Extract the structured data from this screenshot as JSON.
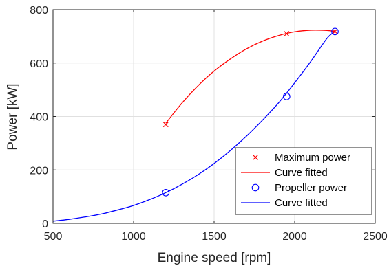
{
  "chart_data": {
    "type": "line",
    "title": "",
    "xlabel": "Engine speed [rpm]",
    "ylabel": "Power [kW]",
    "xlim": [
      500,
      2500
    ],
    "ylim": [
      0,
      800
    ],
    "xticks": [
      "500",
      "1000",
      "1500",
      "2000",
      "2500"
    ],
    "yticks": [
      "0",
      "200",
      "400",
      "600",
      "800"
    ],
    "grid": true,
    "legend_position": "bottom-right",
    "series": [
      {
        "name": "Maximum power",
        "kind": "markers",
        "marker": "x",
        "color": "#ff0000",
        "x": [
          1200,
          1950,
          2250
        ],
        "y": [
          370,
          710,
          718
        ]
      },
      {
        "name": "Curve fitted",
        "kind": "line",
        "color": "#ff0000",
        "x": [
          1200,
          1300,
          1400,
          1500,
          1600,
          1700,
          1800,
          1900,
          2000,
          2100,
          2200,
          2250
        ],
        "y": [
          375,
          450,
          515,
          570,
          615,
          653,
          682,
          703,
          717,
          723,
          722,
          718
        ]
      },
      {
        "name": "Propeller power",
        "kind": "markers",
        "marker": "o",
        "color": "#0000ff",
        "x": [
          1200,
          1950,
          2250
        ],
        "y": [
          115,
          475,
          718
        ]
      },
      {
        "name": "Curve fitted",
        "kind": "line",
        "color": "#0000ff",
        "x": [
          500,
          600,
          700,
          800,
          900,
          1000,
          1100,
          1200,
          1300,
          1400,
          1500,
          1600,
          1700,
          1800,
          1900,
          2000,
          2100,
          2200,
          2250
        ],
        "y": [
          8,
          15,
          24,
          35,
          50,
          67,
          89,
          115,
          146,
          182,
          224,
          272,
          326,
          386,
          451,
          526,
          606,
          692,
          718
        ]
      }
    ]
  }
}
